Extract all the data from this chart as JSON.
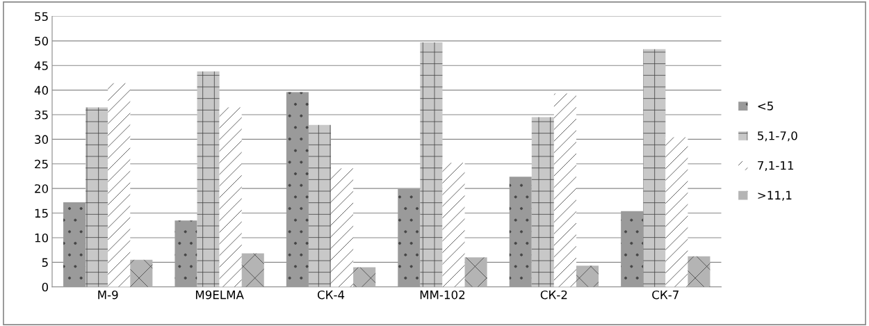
{
  "chart_data": {
    "type": "bar",
    "categories": [
      "M-9",
      "M9ELMA",
      "СК-4",
      "ММ-102",
      "СК-2",
      "СК-7"
    ],
    "series": [
      {
        "name": "<5",
        "color": "#9a9a9a",
        "values": [
          17.2,
          13.5,
          39.6,
          19.9,
          22.4,
          15.4
        ]
      },
      {
        "name": "5,1-7,0",
        "color": "#c8c8c8",
        "values": [
          36.5,
          43.8,
          32.9,
          49.7,
          34.5,
          48.3
        ]
      },
      {
        "name": "7,1-11",
        "color": "#ffffff",
        "values": [
          41.4,
          36.5,
          24.1,
          25.2,
          39.3,
          30.4
        ]
      },
      {
        "name": ">11,1",
        "color": "#b4b4b4",
        "values": [
          5.5,
          6.8,
          4.0,
          6.0,
          4.3,
          6.2
        ]
      }
    ],
    "ylim": [
      0,
      55
    ],
    "yticks": [
      0,
      5,
      10,
      15,
      20,
      25,
      30,
      35,
      40,
      45,
      50,
      55
    ],
    "grid": "y",
    "legend": "right"
  }
}
